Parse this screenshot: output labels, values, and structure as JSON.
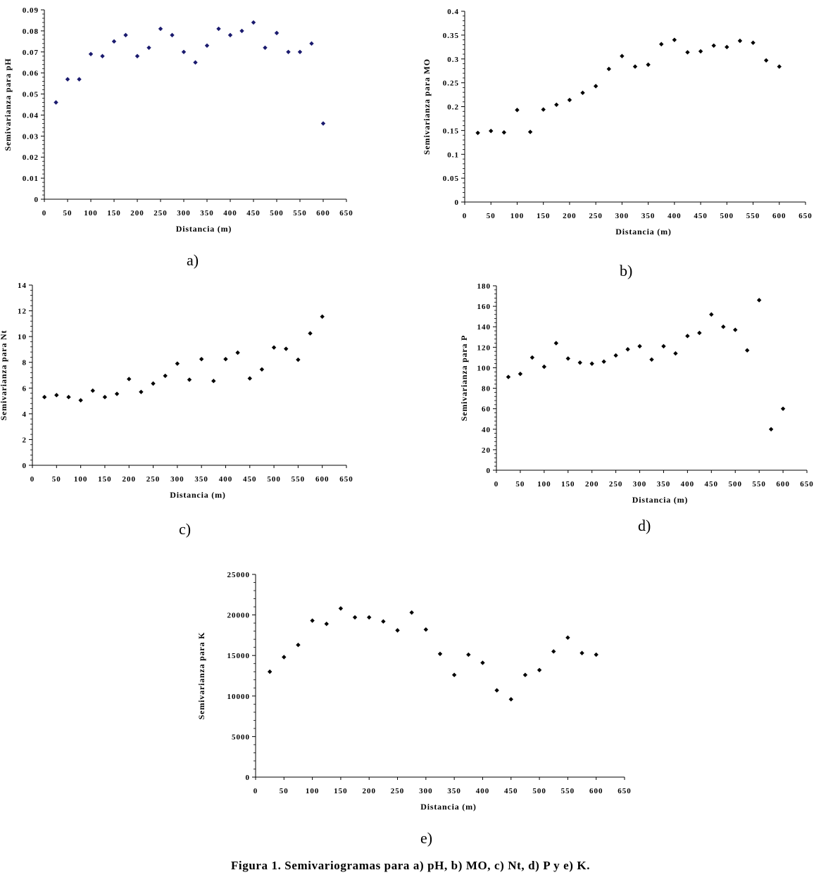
{
  "figure": {
    "caption": "Figura 1. Semivariogramas  para a) pH, b) MO, c) Nt, d) P y e) K."
  },
  "chart_data": [
    {
      "type": "scatter",
      "panel_label": "a)",
      "xlabel": "Distancia (m)",
      "ylabel": "Semivarianza para pH",
      "xlim": [
        0,
        650
      ],
      "ylim": [
        0,
        0.09
      ],
      "xticks": [
        0,
        50,
        100,
        150,
        200,
        250,
        300,
        350,
        400,
        450,
        500,
        550,
        600,
        650
      ],
      "yticks": [
        0,
        0.01,
        0.02,
        0.03,
        0.04,
        0.05,
        0.06,
        0.07,
        0.08,
        0.09
      ],
      "ytick_labels": [
        "0",
        "0.01",
        "0.02",
        "0.03",
        "0.04",
        "0.05",
        "0.06",
        "0.07",
        "0.08",
        "0.09"
      ],
      "marker_color": "#1a1a6e",
      "grid": false,
      "points": [
        {
          "x": 25,
          "y": 0.046
        },
        {
          "x": 50,
          "y": 0.057
        },
        {
          "x": 75,
          "y": 0.057
        },
        {
          "x": 100,
          "y": 0.069
        },
        {
          "x": 125,
          "y": 0.068
        },
        {
          "x": 150,
          "y": 0.075
        },
        {
          "x": 175,
          "y": 0.078
        },
        {
          "x": 200,
          "y": 0.068
        },
        {
          "x": 225,
          "y": 0.072
        },
        {
          "x": 250,
          "y": 0.081
        },
        {
          "x": 275,
          "y": 0.078
        },
        {
          "x": 300,
          "y": 0.07
        },
        {
          "x": 325,
          "y": 0.065
        },
        {
          "x": 350,
          "y": 0.073
        },
        {
          "x": 375,
          "y": 0.081
        },
        {
          "x": 400,
          "y": 0.078
        },
        {
          "x": 425,
          "y": 0.08
        },
        {
          "x": 450,
          "y": 0.084
        },
        {
          "x": 475,
          "y": 0.072
        },
        {
          "x": 500,
          "y": 0.079
        },
        {
          "x": 525,
          "y": 0.07
        },
        {
          "x": 550,
          "y": 0.07
        },
        {
          "x": 575,
          "y": 0.074
        },
        {
          "x": 600,
          "y": 0.036
        }
      ]
    },
    {
      "type": "scatter",
      "panel_label": "b)",
      "xlabel": "Distancia (m)",
      "ylabel": "Semivarianza para MO",
      "xlim": [
        0,
        650
      ],
      "ylim": [
        0,
        0.4
      ],
      "xticks": [
        0,
        50,
        100,
        150,
        200,
        250,
        300,
        350,
        400,
        450,
        500,
        550,
        600,
        650
      ],
      "yticks": [
        0,
        0.05,
        0.1,
        0.15,
        0.2,
        0.25,
        0.3,
        0.35,
        0.4
      ],
      "ytick_labels": [
        "0",
        "0.05",
        "0.1",
        "0.15",
        "0.2",
        "0.25",
        "0.3",
        "0.35",
        "0.4"
      ],
      "marker_color": "#000000",
      "grid": false,
      "points": [
        {
          "x": 25,
          "y": 0.145
        },
        {
          "x": 50,
          "y": 0.149
        },
        {
          "x": 75,
          "y": 0.146
        },
        {
          "x": 100,
          "y": 0.193
        },
        {
          "x": 125,
          "y": 0.147
        },
        {
          "x": 150,
          "y": 0.194
        },
        {
          "x": 175,
          "y": 0.204
        },
        {
          "x": 200,
          "y": 0.214
        },
        {
          "x": 225,
          "y": 0.229
        },
        {
          "x": 250,
          "y": 0.243
        },
        {
          "x": 275,
          "y": 0.279
        },
        {
          "x": 300,
          "y": 0.306
        },
        {
          "x": 325,
          "y": 0.284
        },
        {
          "x": 350,
          "y": 0.288
        },
        {
          "x": 375,
          "y": 0.331
        },
        {
          "x": 400,
          "y": 0.34
        },
        {
          "x": 425,
          "y": 0.314
        },
        {
          "x": 450,
          "y": 0.316
        },
        {
          "x": 475,
          "y": 0.328
        },
        {
          "x": 500,
          "y": 0.325
        },
        {
          "x": 525,
          "y": 0.338
        },
        {
          "x": 550,
          "y": 0.334
        },
        {
          "x": 575,
          "y": 0.297
        },
        {
          "x": 600,
          "y": 0.284
        }
      ]
    },
    {
      "type": "scatter",
      "panel_label": "c)",
      "xlabel": "Distancia (m)",
      "ylabel": "Semivarianza para Nt",
      "xlim": [
        0,
        650
      ],
      "ylim": [
        0,
        14
      ],
      "xticks": [
        0,
        50,
        100,
        150,
        200,
        250,
        300,
        350,
        400,
        450,
        500,
        550,
        600,
        650
      ],
      "yticks": [
        0,
        2,
        4,
        6,
        8,
        10,
        12,
        14
      ],
      "ytick_labels": [
        "0",
        "2",
        "4",
        "6",
        "8",
        "10",
        "12",
        "14"
      ],
      "marker_color": "#000000",
      "grid": false,
      "points": [
        {
          "x": 25,
          "y": 5.3
        },
        {
          "x": 50,
          "y": 5.45
        },
        {
          "x": 75,
          "y": 5.3
        },
        {
          "x": 100,
          "y": 5.05
        },
        {
          "x": 125,
          "y": 5.8
        },
        {
          "x": 150,
          "y": 5.3
        },
        {
          "x": 175,
          "y": 5.55
        },
        {
          "x": 200,
          "y": 6.7
        },
        {
          "x": 225,
          "y": 5.7
        },
        {
          "x": 250,
          "y": 6.35
        },
        {
          "x": 275,
          "y": 6.95
        },
        {
          "x": 300,
          "y": 7.9
        },
        {
          "x": 325,
          "y": 6.65
        },
        {
          "x": 350,
          "y": 8.25
        },
        {
          "x": 375,
          "y": 6.55
        },
        {
          "x": 400,
          "y": 8.25
        },
        {
          "x": 425,
          "y": 8.75
        },
        {
          "x": 450,
          "y": 6.75
        },
        {
          "x": 475,
          "y": 7.45
        },
        {
          "x": 500,
          "y": 9.15
        },
        {
          "x": 525,
          "y": 9.05
        },
        {
          "x": 550,
          "y": 8.2
        },
        {
          "x": 575,
          "y": 10.25
        },
        {
          "x": 600,
          "y": 11.55
        }
      ]
    },
    {
      "type": "scatter",
      "panel_label": "d)",
      "xlabel": "Distancia (m)",
      "ylabel": "Semivarianza para P",
      "xlim": [
        0,
        650
      ],
      "ylim": [
        0,
        180
      ],
      "xticks": [
        0,
        50,
        100,
        150,
        200,
        250,
        300,
        350,
        400,
        450,
        500,
        550,
        600,
        650
      ],
      "yticks": [
        0,
        20,
        40,
        60,
        80,
        100,
        120,
        140,
        160,
        180
      ],
      "ytick_labels": [
        "0",
        "20",
        "40",
        "60",
        "80",
        "100",
        "120",
        "140",
        "160",
        "180"
      ],
      "marker_color": "#000000",
      "grid": false,
      "points": [
        {
          "x": 25,
          "y": 91
        },
        {
          "x": 50,
          "y": 94
        },
        {
          "x": 75,
          "y": 110
        },
        {
          "x": 100,
          "y": 101
        },
        {
          "x": 125,
          "y": 124
        },
        {
          "x": 150,
          "y": 109
        },
        {
          "x": 175,
          "y": 105
        },
        {
          "x": 200,
          "y": 104
        },
        {
          "x": 225,
          "y": 106
        },
        {
          "x": 250,
          "y": 112
        },
        {
          "x": 275,
          "y": 118
        },
        {
          "x": 300,
          "y": 121
        },
        {
          "x": 325,
          "y": 108
        },
        {
          "x": 350,
          "y": 121
        },
        {
          "x": 375,
          "y": 114
        },
        {
          "x": 400,
          "y": 131
        },
        {
          "x": 425,
          "y": 134
        },
        {
          "x": 450,
          "y": 152
        },
        {
          "x": 475,
          "y": 140
        },
        {
          "x": 500,
          "y": 137
        },
        {
          "x": 525,
          "y": 117
        },
        {
          "x": 550,
          "y": 166
        },
        {
          "x": 575,
          "y": 40
        },
        {
          "x": 600,
          "y": 60
        }
      ]
    },
    {
      "type": "scatter",
      "panel_label": "e)",
      "xlabel": "Distancia (m)",
      "ylabel": "Semivarianza para K",
      "xlim": [
        0,
        650
      ],
      "ylim": [
        0,
        25000
      ],
      "xticks": [
        0,
        50,
        100,
        150,
        200,
        250,
        300,
        350,
        400,
        450,
        500,
        550,
        600,
        650
      ],
      "yticks": [
        0,
        5000,
        10000,
        15000,
        20000,
        25000
      ],
      "ytick_labels": [
        "0",
        "5000",
        "10000",
        "15000",
        "20000",
        "25000"
      ],
      "marker_color": "#000000",
      "grid": false,
      "points": [
        {
          "x": 25,
          "y": 13000
        },
        {
          "x": 50,
          "y": 14800
        },
        {
          "x": 75,
          "y": 16300
        },
        {
          "x": 100,
          "y": 19300
        },
        {
          "x": 125,
          "y": 18900
        },
        {
          "x": 150,
          "y": 20800
        },
        {
          "x": 175,
          "y": 19700
        },
        {
          "x": 200,
          "y": 19700
        },
        {
          "x": 225,
          "y": 19200
        },
        {
          "x": 250,
          "y": 18100
        },
        {
          "x": 275,
          "y": 20300
        },
        {
          "x": 300,
          "y": 18200
        },
        {
          "x": 325,
          "y": 15200
        },
        {
          "x": 350,
          "y": 12600
        },
        {
          "x": 375,
          "y": 15100
        },
        {
          "x": 400,
          "y": 14100
        },
        {
          "x": 425,
          "y": 10700
        },
        {
          "x": 450,
          "y": 9600
        },
        {
          "x": 475,
          "y": 12600
        },
        {
          "x": 500,
          "y": 13200
        },
        {
          "x": 525,
          "y": 15500
        },
        {
          "x": 550,
          "y": 17200
        },
        {
          "x": 575,
          "y": 15300
        },
        {
          "x": 600,
          "y": 15100
        }
      ]
    }
  ]
}
